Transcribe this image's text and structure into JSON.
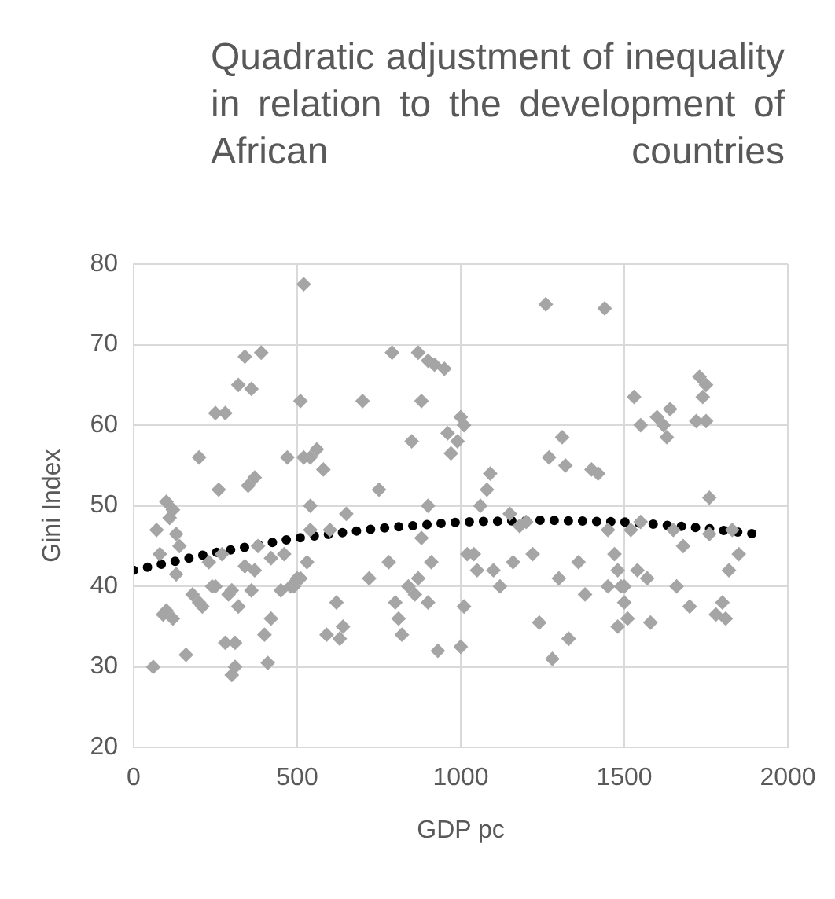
{
  "chart_data": {
    "type": "scatter",
    "title": "Quadratic adjustment of inequality in relation to the development of African countries",
    "xlabel": "GDP pc",
    "ylabel": "Gini Index",
    "xlim": [
      0,
      2000
    ],
    "ylim": [
      20,
      80
    ],
    "xticks": [
      0,
      500,
      1000,
      1500,
      2000
    ],
    "yticks": [
      20,
      30,
      40,
      50,
      60,
      70,
      80
    ],
    "grid": true,
    "series": [
      {
        "color": "#a5a5a5",
        "marker": "diamond",
        "x": [
          60,
          100,
          90,
          120,
          80,
          70,
          110,
          100,
          120,
          130,
          140,
          130,
          160,
          200,
          200,
          230,
          250,
          280,
          260,
          270,
          290,
          300,
          310,
          320,
          340,
          350,
          360,
          370,
          390,
          370,
          380,
          400,
          410,
          420,
          450,
          460,
          480,
          490,
          500,
          470,
          420,
          340,
          360,
          300,
          320,
          250,
          310,
          280,
          180,
          210,
          240,
          520,
          510,
          520,
          540,
          540,
          530,
          510,
          540,
          580,
          560,
          600,
          620,
          590,
          630,
          640,
          650,
          700,
          720,
          750,
          790,
          780,
          800,
          810,
          820,
          840,
          850,
          870,
          880,
          900,
          900,
          920,
          950,
          880,
          870,
          860,
          900,
          910,
          930,
          960,
          970,
          990,
          1000,
          1010,
          1020,
          1040,
          1050,
          1060,
          1080,
          1090,
          1100,
          1000,
          1010,
          1120,
          1150,
          1160,
          1180,
          1200,
          1220,
          1260,
          1270,
          1240,
          1280,
          1300,
          1310,
          1320,
          1330,
          1360,
          1380,
          1400,
          1420,
          1440,
          1450,
          1470,
          1480,
          1490,
          1500,
          1500,
          1510,
          1530,
          1520,
          1540,
          1550,
          1570,
          1580,
          1600,
          1620,
          1630,
          1640,
          1650,
          1660,
          1680,
          1700,
          1720,
          1730,
          1740,
          1750,
          1750,
          1760,
          1780,
          1800,
          1820,
          1830,
          1850,
          1810,
          1760,
          1550,
          1450,
          1480
        ],
        "values": [
          30,
          37,
          36.5,
          36,
          44,
          47,
          48.5,
          50.5,
          49.5,
          46.5,
          45,
          41.5,
          31.5,
          38,
          56,
          43,
          61.5,
          61.5,
          52,
          44,
          39,
          29,
          30,
          65,
          68.5,
          52.5,
          64.5,
          53.5,
          69,
          42,
          45,
          34,
          30.5,
          36,
          39.5,
          44,
          40,
          40,
          41,
          56,
          43.5,
          42.5,
          39.5,
          39.5,
          37.5,
          40,
          33,
          33,
          39,
          37.5,
          40,
          77.5,
          63,
          56,
          56,
          50,
          43,
          41,
          47,
          54.5,
          57,
          47,
          38,
          34,
          33.5,
          35,
          49,
          63,
          41,
          52,
          69,
          43,
          38,
          36,
          34,
          40,
          58,
          69,
          63,
          68,
          50,
          67.5,
          67,
          46,
          41,
          39,
          38,
          43,
          32,
          59,
          56.5,
          58,
          61,
          37.5,
          44,
          44,
          42,
          50,
          52,
          54,
          42,
          32.5,
          60,
          40,
          49,
          43,
          47.5,
          48,
          44,
          75,
          56,
          35.5,
          31,
          41,
          58.5,
          55,
          33.5,
          43,
          39,
          54.5,
          54,
          74.5,
          47,
          44,
          42,
          40,
          40,
          38,
          36,
          63.5,
          47,
          42,
          60,
          41,
          35.5,
          61,
          60,
          58.5,
          62,
          47,
          40,
          45,
          37.5,
          60.5,
          66,
          63.5,
          65,
          60.5,
          51,
          36.5,
          38,
          42,
          47,
          44,
          36,
          46.5,
          48,
          40,
          35
        ]
      },
      {
        "type": "line",
        "color": "#000000",
        "marker": "none",
        "line_style": "dotted",
        "x": [
          0,
          250,
          500,
          750,
          1000,
          1250,
          1500,
          1750,
          1900
        ],
        "values": [
          42,
          44.2,
          46,
          47.2,
          48,
          48.2,
          48,
          47.2,
          46.5
        ]
      }
    ]
  }
}
